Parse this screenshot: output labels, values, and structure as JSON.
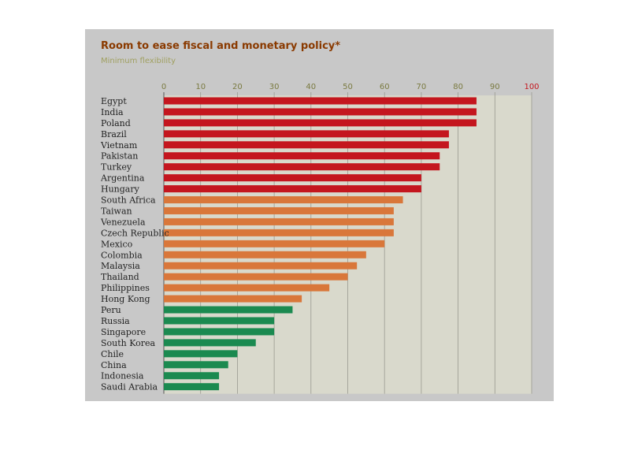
{
  "chart_data": {
    "type": "bar",
    "orientation": "horizontal",
    "title": "Room to ease fiscal and monetary policy*",
    "subtitle": "Minimum flexibility",
    "xlim": [
      0,
      100
    ],
    "x_ticks": [
      0,
      10,
      20,
      30,
      40,
      50,
      60,
      70,
      80,
      90,
      100
    ],
    "grid": true,
    "categories": [
      "Egypt",
      "India",
      "Poland",
      "Brazil",
      "Vietnam",
      "Pakistan",
      "Turkey",
      "Argentina",
      "Hungary",
      "South Africa",
      "Taiwan",
      "Venezuela",
      "Czech Republic",
      "Mexico",
      "Colombia",
      "Malaysia",
      "Thailand",
      "Philippines",
      "Hong Kong",
      "Peru",
      "Russia",
      "Singapore",
      "South Korea",
      "Chile",
      "China",
      "Indonesia",
      "Saudi Arabia"
    ],
    "values": [
      85,
      85,
      85,
      77.5,
      77.5,
      75,
      75,
      70,
      70,
      65,
      62.5,
      62.5,
      62.5,
      60,
      55,
      52.5,
      50,
      45,
      37.5,
      35,
      30,
      30,
      25,
      20,
      17.5,
      15,
      15
    ],
    "groups": [
      "red",
      "red",
      "red",
      "red",
      "red",
      "red",
      "red",
      "red",
      "red",
      "orange",
      "orange",
      "orange",
      "orange",
      "orange",
      "orange",
      "orange",
      "orange",
      "orange",
      "orange",
      "green",
      "green",
      "green",
      "green",
      "green",
      "green",
      "green",
      "green"
    ],
    "colors": {
      "red": "#c4161e",
      "orange": "#d9773a",
      "green": "#1b8a50",
      "chart_bg": "#d9d9cc",
      "frame_bg": "#c8c8c8",
      "title": "#8a3a00",
      "subtitle": "#a0a060",
      "label": "#222222"
    }
  }
}
